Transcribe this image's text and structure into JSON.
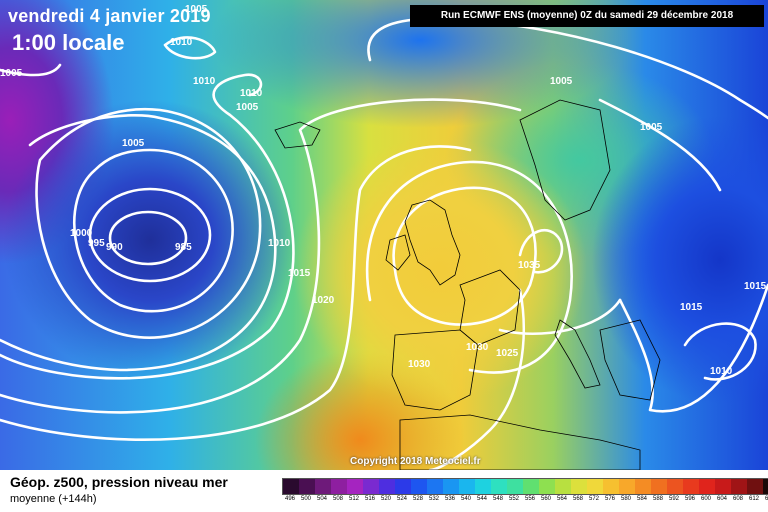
{
  "map": {
    "date_label": "vendredi 4 janvier 2019",
    "time_label": "1:00 locale",
    "run_label": "Run ECMWF ENS (moyenne) 0Z du samedi 29 décembre 2018",
    "copyright": "Copyright 2018 Meteociel.fr",
    "isobar_labels": [
      {
        "id": "l1005a",
        "text": "1005"
      },
      {
        "id": "l1010a",
        "text": "1010"
      },
      {
        "id": "l1005b",
        "text": "1005"
      },
      {
        "id": "l1010b",
        "text": "1010"
      },
      {
        "id": "l1010c",
        "text": "1010"
      },
      {
        "id": "l1005c",
        "text": "1005"
      },
      {
        "id": "l1005d",
        "text": "1005"
      },
      {
        "id": "l1005e",
        "text": "1005"
      },
      {
        "id": "l1000",
        "text": "1000"
      },
      {
        "id": "l995",
        "text": "995"
      },
      {
        "id": "l990",
        "text": "990"
      },
      {
        "id": "l985",
        "text": "985"
      },
      {
        "id": "l1010d",
        "text": "1010"
      },
      {
        "id": "l1015a",
        "text": "1015"
      },
      {
        "id": "l1020",
        "text": "1020"
      },
      {
        "id": "l1030a",
        "text": "1030"
      },
      {
        "id": "l1030b",
        "text": "1030"
      },
      {
        "id": "l1025",
        "text": "1025"
      },
      {
        "id": "l1035",
        "text": "1035"
      },
      {
        "id": "l1015b",
        "text": "1015"
      },
      {
        "id": "l1015c",
        "text": "1015"
      },
      {
        "id": "l1010e",
        "text": "1010"
      },
      {
        "id": "l1005f",
        "text": "1005"
      }
    ]
  },
  "legend": {
    "title": "Géop. z500, pression niveau mer",
    "subtitle": "moyenne  (+144h)",
    "scale_values": [
      "496",
      "500",
      "504",
      "508",
      "512",
      "516",
      "520",
      "524",
      "528",
      "532",
      "536",
      "540",
      "544",
      "548",
      "552",
      "556",
      "560",
      "564",
      "568",
      "572",
      "576",
      "580",
      "584",
      "588",
      "592",
      "596",
      "600",
      "604",
      "608",
      "612",
      "616"
    ],
    "scale_colors": [
      "#2a0a2e",
      "#4a0f52",
      "#6e1a7a",
      "#8e1fa0",
      "#a524c0",
      "#7a2ad0",
      "#4e2ee0",
      "#2c3ae8",
      "#1e56f0",
      "#1c76f2",
      "#1a96f2",
      "#1ab6ee",
      "#1ed2e0",
      "#2ee0c0",
      "#3ee0a0",
      "#60e070",
      "#8ee050",
      "#b8e040",
      "#dce03c",
      "#f0d83a",
      "#f6c030",
      "#f8a82a",
      "#f48c24",
      "#f07020",
      "#ec5420",
      "#e83a1e",
      "#e0241c",
      "#c81a1a",
      "#a01416",
      "#701010",
      "#1a0808"
    ]
  }
}
